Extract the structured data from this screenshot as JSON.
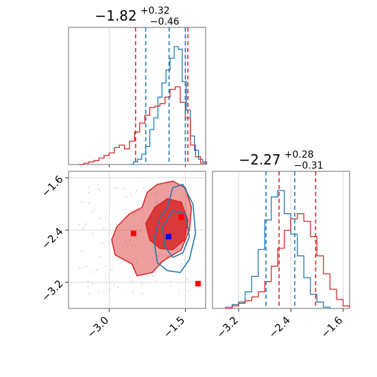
{
  "chart_data": [
    {
      "type": "histogram",
      "panel": "marginal-param-1",
      "title_value": "−1.82",
      "title_plus": "+0.32",
      "title_minus": "−0.46",
      "xlim": [
        -3.8,
        -1.1
      ],
      "series": [
        {
          "color": "#1f77b4",
          "bins": [
            -2.6,
            -2.52,
            -2.44,
            -2.36,
            -2.28,
            -2.2,
            -2.12,
            -2.04,
            -1.96,
            -1.88,
            -1.8,
            -1.72,
            -1.64,
            -1.56,
            -1.48,
            -1.4,
            -1.32,
            -1.24,
            -1.16
          ],
          "counts": [
            0.0,
            0.02,
            0.04,
            0.08,
            0.14,
            0.27,
            0.36,
            0.52,
            0.63,
            0.73,
            0.82,
            0.91,
            0.89,
            0.64,
            0.42,
            0.22,
            0.11,
            0.04,
            0.02
          ],
          "quantiles": [
            -2.28,
            -1.82,
            -1.5
          ]
        },
        {
          "color": "#d62728",
          "bins": [
            -3.6,
            -3.5,
            -3.4,
            -3.3,
            -3.2,
            -3.1,
            -3.0,
            -2.9,
            -2.8,
            -2.7,
            -2.6,
            -2.5,
            -2.4,
            -2.3,
            -2.2,
            -2.1,
            -2.0,
            -1.9,
            -1.8,
            -1.7,
            -1.6,
            -1.5,
            -1.4,
            -1.3,
            -1.2,
            -1.1
          ],
          "counts": [
            0.0,
            0.01,
            0.02,
            0.03,
            0.05,
            0.07,
            0.09,
            0.13,
            0.15,
            0.12,
            0.18,
            0.25,
            0.32,
            0.38,
            0.44,
            0.45,
            0.47,
            0.52,
            0.58,
            0.6,
            0.48,
            0.36,
            0.15,
            0.06,
            0.01
          ],
          "quantiles": [
            -2.48,
            -1.45
          ]
        }
      ]
    },
    {
      "type": "histogram",
      "panel": "marginal-param-2",
      "title_value": "−2.27",
      "title_plus": "+0.28",
      "title_minus": "−0.31",
      "xlim": [
        -3.6,
        -1.5
      ],
      "xticks": [
        "−3.2",
        "−2.4",
        "−1.6"
      ],
      "xtick_values": [
        -3.2,
        -2.4,
        -1.6
      ],
      "series": [
        {
          "color": "#1f77b4",
          "bins": [
            -3.4,
            -3.3,
            -3.2,
            -3.1,
            -3.0,
            -2.9,
            -2.8,
            -2.7,
            -2.6,
            -2.5,
            -2.4,
            -2.3,
            -2.2,
            -2.1,
            -2.0,
            -1.9,
            -1.8
          ],
          "counts": [
            0.01,
            0.03,
            0.05,
            0.13,
            0.25,
            0.46,
            0.69,
            0.87,
            0.92,
            0.74,
            0.58,
            0.41,
            0.24,
            0.11,
            0.05,
            0.01
          ],
          "quantiles": [
            -2.78,
            -2.34
          ]
        },
        {
          "color": "#d62728",
          "bins": [
            -3.4,
            -3.3,
            -3.2,
            -3.1,
            -3.0,
            -2.9,
            -2.8,
            -2.7,
            -2.6,
            -2.5,
            -2.4,
            -2.3,
            -2.2,
            -2.1,
            -2.0,
            -1.9,
            -1.8,
            -1.7,
            -1.6,
            -1.5
          ],
          "counts": [
            0.0,
            0.02,
            0.04,
            0.06,
            0.09,
            0.13,
            0.21,
            0.33,
            0.47,
            0.61,
            0.7,
            0.74,
            0.68,
            0.56,
            0.41,
            0.27,
            0.15,
            0.07,
            0.02
          ],
          "quantiles": [
            -2.58,
            -2.02
          ]
        }
      ]
    },
    {
      "type": "contour",
      "panel": "joint-param-1-vs-param-2",
      "xlim": [
        -3.8,
        -1.1
      ],
      "ylim": [
        -3.6,
        -1.5
      ],
      "xticks": [
        "−3.0",
        "−1.5"
      ],
      "xtick_values": [
        -3.0,
        -1.5
      ],
      "yticks": [
        "−1.6",
        "−2.4",
        "−3.2"
      ],
      "ytick_values": [
        -1.6,
        -2.4,
        -3.2
      ],
      "contours": [
        {
          "color": "#d62728",
          "level": "outer",
          "points": [
            [
              -2.88,
              -2.78
            ],
            [
              -2.95,
              -2.55
            ],
            [
              -2.85,
              -2.35
            ],
            [
              -2.6,
              -2.15
            ],
            [
              -2.35,
              -2.05
            ],
            [
              -2.25,
              -1.82
            ],
            [
              -2.05,
              -1.7
            ],
            [
              -1.75,
              -1.65
            ],
            [
              -1.5,
              -1.75
            ],
            [
              -1.38,
              -2.05
            ],
            [
              -1.42,
              -2.4
            ],
            [
              -1.58,
              -2.7
            ],
            [
              -1.95,
              -2.88
            ],
            [
              -2.15,
              -3.05
            ],
            [
              -2.45,
              -3.1
            ],
            [
              -2.55,
              -2.92
            ]
          ]
        },
        {
          "color": "#d62728",
          "level": "inner",
          "points": [
            [
              -2.2,
              -2.55
            ],
            [
              -2.28,
              -2.3
            ],
            [
              -2.1,
              -2.05
            ],
            [
              -1.85,
              -1.92
            ],
            [
              -1.58,
              -1.97
            ],
            [
              -1.45,
              -2.25
            ],
            [
              -1.52,
              -2.55
            ],
            [
              -1.75,
              -2.7
            ],
            [
              -2.0,
              -2.68
            ]
          ]
        },
        {
          "color": "#1f77b4",
          "level": "outer",
          "points": [
            [
              -2.05,
              -2.9
            ],
            [
              -2.12,
              -2.55
            ],
            [
              -2.0,
              -2.2
            ],
            [
              -1.85,
              -2.05
            ],
            [
              -1.75,
              -1.75
            ],
            [
              -1.55,
              -1.7
            ],
            [
              -1.35,
              -2.0
            ],
            [
              -1.3,
              -2.45
            ],
            [
              -1.42,
              -2.85
            ],
            [
              -1.6,
              -3.05
            ],
            [
              -1.85,
              -3.02
            ]
          ]
        },
        {
          "color": "#1f77b4",
          "level": "inner",
          "points": [
            [
              -1.9,
              -2.65
            ],
            [
              -1.95,
              -2.35
            ],
            [
              -1.75,
              -2.1
            ],
            [
              -1.5,
              -2.15
            ],
            [
              -1.42,
              -2.5
            ],
            [
              -1.55,
              -2.75
            ],
            [
              -1.75,
              -2.82
            ]
          ]
        }
      ],
      "markers": [
        {
          "color": "#ff0000",
          "x": -2.52,
          "y": -2.45
        },
        {
          "color": "#ff0000",
          "x": -1.58,
          "y": -2.2
        },
        {
          "color": "#ff0000",
          "x": -1.25,
          "y": -3.22
        },
        {
          "color": "#0000ff",
          "x": -1.83,
          "y": -2.5
        }
      ]
    }
  ]
}
